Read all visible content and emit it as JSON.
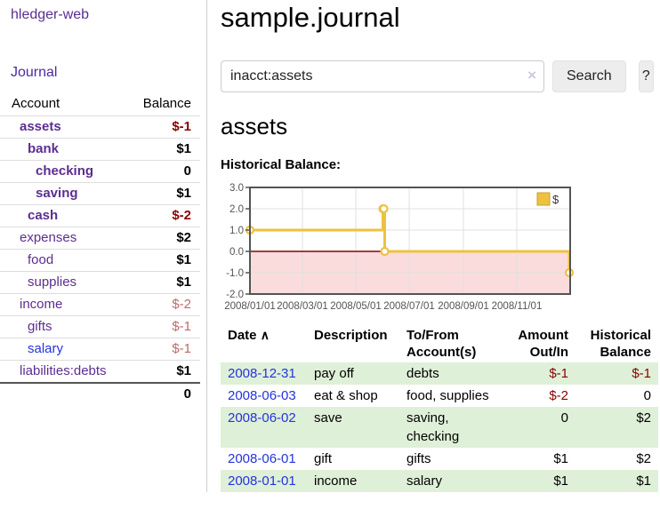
{
  "app": {
    "title": "hledger-web"
  },
  "sidebar": {
    "journal_link": "Journal",
    "headers": {
      "account": "Account",
      "balance": "Balance"
    },
    "accounts": [
      {
        "name": "assets",
        "balance": "$-1"
      },
      {
        "name": "bank",
        "balance": "$1"
      },
      {
        "name": "checking",
        "balance": "0"
      },
      {
        "name": "saving",
        "balance": "$1"
      },
      {
        "name": "cash",
        "balance": "$-2"
      },
      {
        "name": "expenses",
        "balance": "$2"
      },
      {
        "name": "food",
        "balance": "$1"
      },
      {
        "name": "supplies",
        "balance": "$1"
      },
      {
        "name": "income",
        "balance": "$-2"
      },
      {
        "name": "gifts",
        "balance": "$-1"
      },
      {
        "name": "salary",
        "balance": "$-1"
      },
      {
        "name": "liabilities:debts",
        "balance": "$1"
      }
    ],
    "total": "0"
  },
  "main": {
    "title": "sample.journal",
    "search": {
      "value": "inacct:assets",
      "clear_icon": "×",
      "button_label": "Search",
      "help_label": "?"
    },
    "account_heading": "assets",
    "chart_label": "Historical Balance:"
  },
  "chart_data": {
    "type": "line",
    "title": "Historical Balance:",
    "series": [
      {
        "name": "$",
        "color": "#edc240",
        "step": true,
        "points": [
          [
            "2008-01-01",
            1
          ],
          [
            "2008-06-01",
            2
          ],
          [
            "2008-06-02",
            2
          ],
          [
            "2008-06-03",
            0
          ],
          [
            "2008-12-31",
            -1
          ]
        ]
      }
    ],
    "xlim": [
      "2008-01-01",
      "2009-01-01"
    ],
    "ylim": [
      -2,
      3
    ],
    "y_ticks": [
      "3.0",
      "2.0",
      "1.0",
      "0.0",
      "-1.0",
      "-2.0"
    ],
    "x_ticks": [
      "2008/01/01",
      "2008/03/01",
      "2008/05/01",
      "2008/07/01",
      "2008/09/01",
      "2008/11/01"
    ],
    "legend_position": "top-right",
    "grid": true,
    "negative_region_fill": "#fbdcdc",
    "zero_line_color": "#8b0000",
    "axis_label_color": "#545454",
    "border_color": "#545454"
  },
  "transactions": {
    "headers": [
      "Date",
      "Description",
      "To/From Account(s)",
      "Amount Out/In",
      "Historical Balance"
    ],
    "sort_indicator": "∧",
    "rows": [
      {
        "date": "2008-12-31",
        "description": "pay off",
        "accounts": "debts",
        "amount": "$-1",
        "balance": "$-1"
      },
      {
        "date": "2008-06-03",
        "description": "eat & shop",
        "accounts": "food, supplies",
        "amount": "$-2",
        "balance": "0"
      },
      {
        "date": "2008-06-02",
        "description": "save",
        "accounts": "saving, checking",
        "amount": "0",
        "balance": "$2"
      },
      {
        "date": "2008-06-01",
        "description": "gift",
        "accounts": "gifts",
        "amount": "$1",
        "balance": "$2"
      },
      {
        "date": "2008-01-01",
        "description": "income",
        "accounts": "salary",
        "amount": "$1",
        "balance": "$1"
      }
    ]
  }
}
